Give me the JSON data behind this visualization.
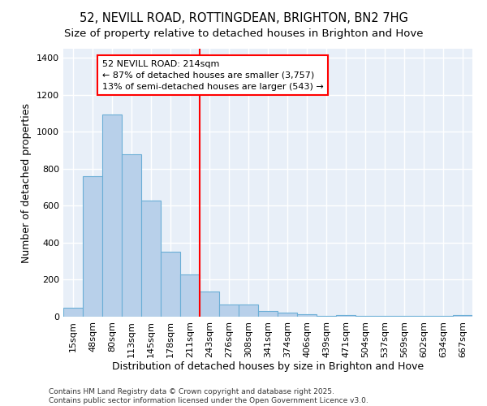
{
  "title": "52, NEVILL ROAD, ROTTINGDEAN, BRIGHTON, BN2 7HG",
  "subtitle": "Size of property relative to detached houses in Brighton and Hove",
  "xlabel": "Distribution of detached houses by size in Brighton and Hove",
  "ylabel": "Number of detached properties",
  "categories": [
    "15sqm",
    "48sqm",
    "80sqm",
    "113sqm",
    "145sqm",
    "178sqm",
    "211sqm",
    "243sqm",
    "276sqm",
    "308sqm",
    "341sqm",
    "374sqm",
    "406sqm",
    "439sqm",
    "471sqm",
    "504sqm",
    "537sqm",
    "569sqm",
    "602sqm",
    "634sqm",
    "667sqm"
  ],
  "bar_values": [
    50,
    760,
    1095,
    880,
    630,
    350,
    230,
    135,
    65,
    65,
    30,
    22,
    14,
    5,
    8,
    5,
    5,
    5,
    5,
    5,
    8
  ],
  "bar_color": "#b8d0ea",
  "bar_edge_color": "#6baed6",
  "background_color": "#e8eff8",
  "grid_color": "#ffffff",
  "vline_position": 6.5,
  "vline_color": "red",
  "annotation_text": "52 NEVILL ROAD: 214sqm\n← 87% of detached houses are smaller (3,757)\n13% of semi-detached houses are larger (543) →",
  "annotation_box_facecolor": "white",
  "annotation_box_edgecolor": "red",
  "ylim": [
    0,
    1450
  ],
  "yticks": [
    0,
    200,
    400,
    600,
    800,
    1000,
    1200,
    1400
  ],
  "footnote": "Contains HM Land Registry data © Crown copyright and database right 2025.\nContains public sector information licensed under the Open Government Licence v3.0.",
  "title_fontsize": 10.5,
  "subtitle_fontsize": 9.5,
  "xlabel_fontsize": 9,
  "ylabel_fontsize": 9,
  "tick_fontsize": 8,
  "annot_fontsize": 8,
  "footnote_fontsize": 6.5
}
